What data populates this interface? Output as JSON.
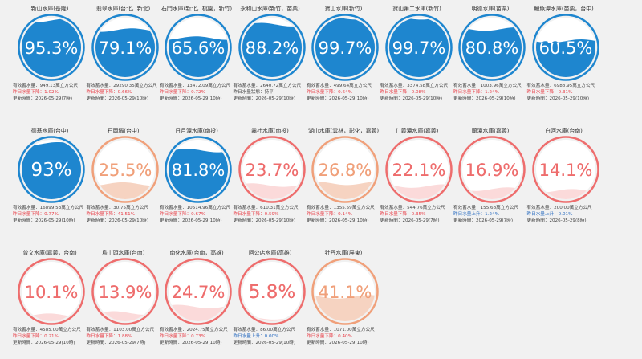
{
  "labels": {
    "storage_prefix": "有效蓄水量：",
    "updated_prefix": "更新時間："
  },
  "colors": {
    "blue": "#1e86cf",
    "orange": "#f0a07a",
    "red": "#ee6d6d",
    "down_text": "#e8414a",
    "up_text": "#2a6cc0"
  },
  "reservoirs": [
    {
      "name": "新山水庫(基隆)",
      "percent": 95.3,
      "display": "95.3%",
      "level": "blue",
      "storage": "949.13萬立方公尺",
      "change": "昨日水量下降：1.02%",
      "direction": "down",
      "updated": "2026-05-29(7時)"
    },
    {
      "name": "翡翠水庫(台北，新北)",
      "percent": 79.1,
      "display": "79.1%",
      "level": "blue",
      "storage": "29290.35萬立方公尺",
      "change": "昨日水量下降：0.66%",
      "direction": "down",
      "updated": "2026-05-29(10時)"
    },
    {
      "name": "石門水庫(新北，桃園，新竹)",
      "percent": 65.6,
      "display": "65.6%",
      "level": "blue",
      "storage": "13472.09萬立方公尺",
      "change": "昨日水量下降：0.72%",
      "direction": "down",
      "updated": "2026-05-29(10時)"
    },
    {
      "name": "永和山水庫(新竹，苗栗)",
      "percent": 88.2,
      "display": "88.2%",
      "level": "blue",
      "storage": "2640.72萬立方公尺",
      "change": "昨日水量狀態：持平",
      "direction": "flat",
      "updated": "2026-05-29(10時)"
    },
    {
      "name": "寶山水庫(新竹)",
      "percent": 99.7,
      "display": "99.7%",
      "level": "blue",
      "storage": "499.64萬立方公尺",
      "change": "昨日水量下降：0.64%",
      "direction": "down",
      "updated": "2026-05-29(10時)"
    },
    {
      "name": "寶山第二水庫(新竹)",
      "percent": 99.7,
      "display": "99.7%",
      "level": "blue",
      "storage": "3374.58萬立方公尺",
      "change": "昨日水量下降：0.08%",
      "direction": "down",
      "updated": "2026-05-29(10時)"
    },
    {
      "name": "明德水庫(苗栗)",
      "percent": 80.8,
      "display": "80.8%",
      "level": "blue",
      "storage": "1003.96萬立方公尺",
      "change": "昨日水量下降：1.24%",
      "direction": "down",
      "updated": "2026-05-29(10時)"
    },
    {
      "name": "鯉魚潭水庫(苗栗，台中)",
      "percent": 60.5,
      "display": "60.5%",
      "level": "blue",
      "storage": "6988.95萬立方公尺",
      "change": "昨日水量下降：0.31%",
      "direction": "down",
      "updated": "2026-05-29(10時)"
    },
    {
      "name": "德基水庫(台中)",
      "percent": 93,
      "display": "93%",
      "level": "blue",
      "storage": "16899.53萬立方公尺",
      "change": "昨日水量下降：0.77%",
      "direction": "down",
      "updated": "2026-05-29(10時)"
    },
    {
      "name": "石岡壩(台中)",
      "percent": 25.5,
      "display": "25.5%",
      "level": "orange",
      "storage": "30.75萬立方公尺",
      "change": "昨日水量下降：41.51%",
      "direction": "down",
      "updated": "2026-05-29(10時)"
    },
    {
      "name": "日月潭水庫(南投)",
      "percent": 81.8,
      "display": "81.8%",
      "level": "blue",
      "storage": "10514.96萬立方公尺",
      "change": "昨日水量下降：0.67%",
      "direction": "down",
      "updated": "2026-05-29(10時)"
    },
    {
      "name": "霧社水庫(南投)",
      "percent": 23.7,
      "display": "23.7%",
      "level": "red",
      "storage": "610.31萬立方公尺",
      "change": "昨日水量下降：0.59%",
      "direction": "down",
      "updated": "2026-05-29(10時)"
    },
    {
      "name": "湖山水庫(雲林，彰化，嘉義)",
      "percent": 26.8,
      "display": "26.8%",
      "level": "orange",
      "storage": "1355.59萬立方公尺",
      "change": "昨日水量下降：0.14%",
      "direction": "down",
      "updated": "2026-05-29(10時)"
    },
    {
      "name": "仁義潭水庫(嘉義)",
      "percent": 22.1,
      "display": "22.1%",
      "level": "red",
      "storage": "544.76萬立方公尺",
      "change": "昨日水量下降：0.35%",
      "direction": "down",
      "updated": "2026-05-29(7時)"
    },
    {
      "name": "蘭潭水庫(嘉義)",
      "percent": 16.9,
      "display": "16.9%",
      "level": "red",
      "storage": "155.68萬立方公尺",
      "change": "昨日水量上升：1.24%",
      "direction": "up",
      "updated": "2026-05-29(7時)"
    },
    {
      "name": "白河水庫(台南)",
      "percent": 14.1,
      "display": "14.1%",
      "level": "red",
      "storage": "200.00萬立方公尺",
      "change": "昨日水量上升：0.01%",
      "direction": "up",
      "updated": "2026-05-29(8時)"
    },
    {
      "name": "曾文水庫(嘉義，台南)",
      "percent": 10.1,
      "display": "10.1%",
      "level": "red",
      "storage": "4585.00萬立方公尺",
      "change": "昨日水量下降：0.21%",
      "direction": "down",
      "updated": "2026-05-29(10時)"
    },
    {
      "name": "烏山頭水庫(台南)",
      "percent": 13.9,
      "display": "13.9%",
      "level": "red",
      "storage": "1103.00萬立方公尺",
      "change": "昨日水量下降：1.88%",
      "direction": "down",
      "updated": "2026-05-29(7時)"
    },
    {
      "name": "南化水庫(台南，高雄)",
      "percent": 24.7,
      "display": "24.7%",
      "level": "red",
      "storage": "2024.75萬立方公尺",
      "change": "昨日水量下降：0.73%",
      "direction": "down",
      "updated": "2026-05-29(10時)"
    },
    {
      "name": "阿公店水庫(高雄)",
      "percent": 5.8,
      "display": "5.8%",
      "level": "red",
      "storage": "86.00萬立方公尺",
      "change": "昨日水量上升：0.00%",
      "direction": "up",
      "updated": "2026-05-29(10時)"
    },
    {
      "name": "牡丹水庫(屏東)",
      "percent": 41.1,
      "display": "41.1%",
      "level": "orange",
      "storage": "1071.00萬立方公尺",
      "change": "昨日水量下降：0.40%",
      "direction": "down",
      "updated": "2026-05-29(10時)"
    }
  ]
}
